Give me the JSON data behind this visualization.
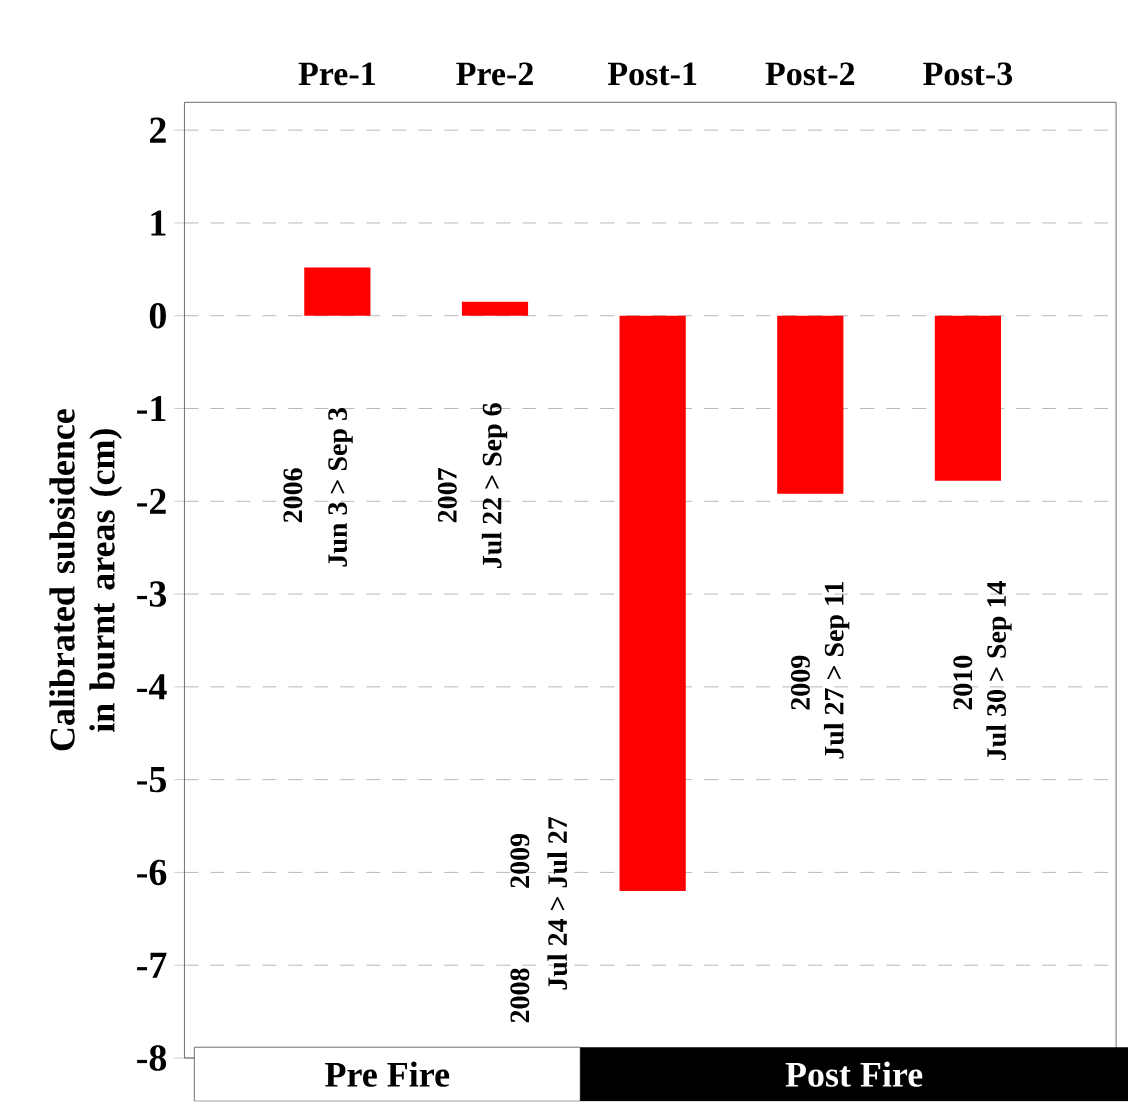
{
  "chart_data": {
    "type": "bar",
    "ylabel": "Calibrated subsidence in burnt areas (cm)",
    "categories": [
      "Pre-1",
      "Pre-2",
      "Post-1",
      "Post-2",
      "Post-3"
    ],
    "values": [
      0.52,
      0.15,
      -6.2,
      -1.92,
      -1.78
    ],
    "color": "#ff0000",
    "ylim": [
      -8,
      2.3
    ],
    "yticks": [
      -8,
      -7,
      -6,
      -5,
      -4,
      -3,
      -2,
      -1,
      0,
      1,
      2
    ],
    "grid": "y",
    "annotations": [
      "2006",
      "Jun 3 > Sep 3",
      "2007",
      "Jul 22 > Sep 6",
      "2008",
      "2009",
      "Jul 24 > Jul 27",
      "2009",
      "Jul 27 > Sep 11",
      "2010",
      "Jul 30 > Sep 14",
      "Pre Fire",
      "Post Fire"
    ]
  }
}
